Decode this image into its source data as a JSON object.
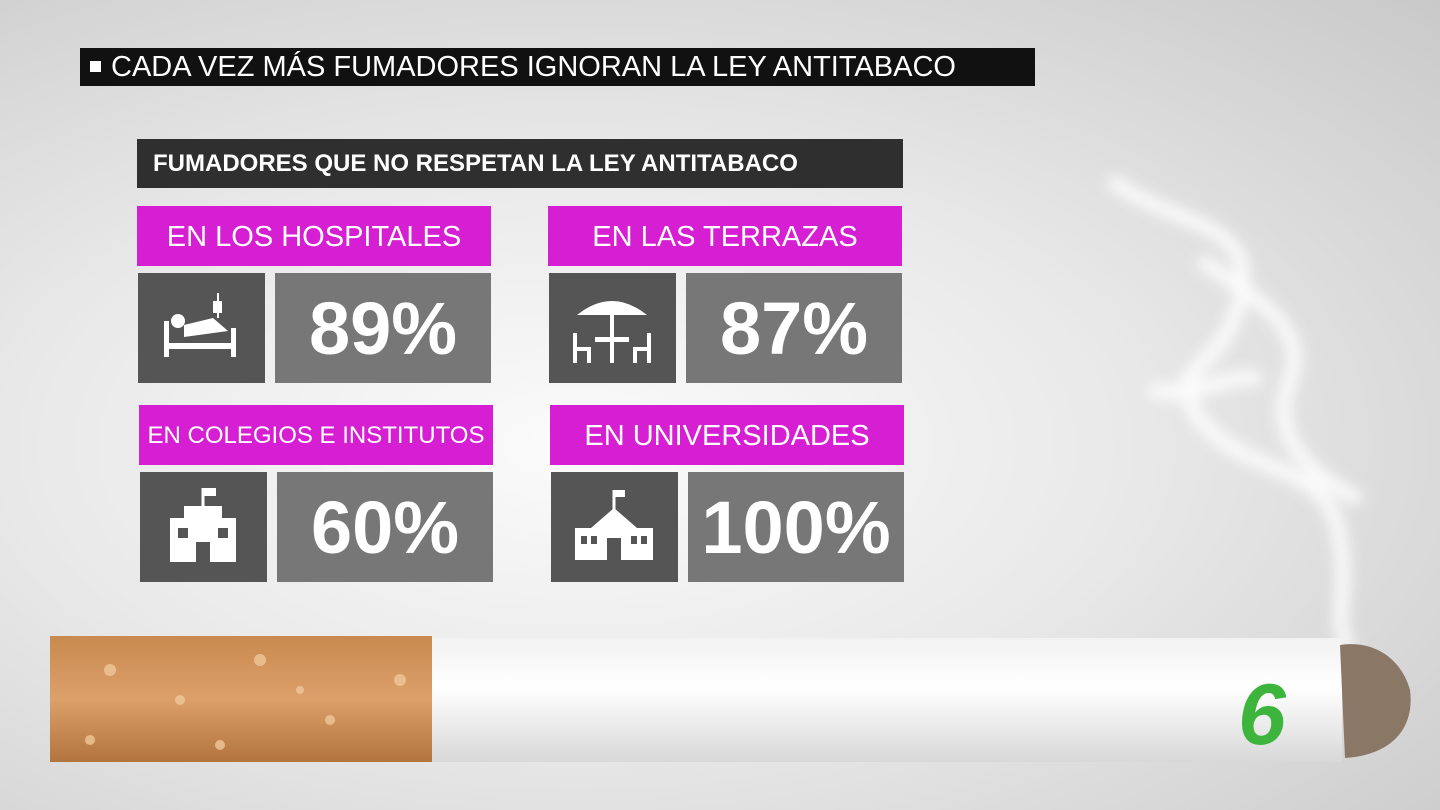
{
  "headline": "CADA VEZ MÁS FUMADORES IGNORAN LA LEY ANTITABACO",
  "subtitle": "FUMADORES QUE NO RESPETAN LA LEY ANTITABACO",
  "panels": [
    {
      "label": "EN LOS HOSPITALES",
      "value": "89%"
    },
    {
      "label": "EN LAS TERRAZAS",
      "value": "87%"
    },
    {
      "label": "EN COLEGIOS E INSTITUTOS",
      "value": "60%"
    },
    {
      "label": "EN UNIVERSIDADES",
      "value": "100%"
    }
  ],
  "logo": "6"
}
